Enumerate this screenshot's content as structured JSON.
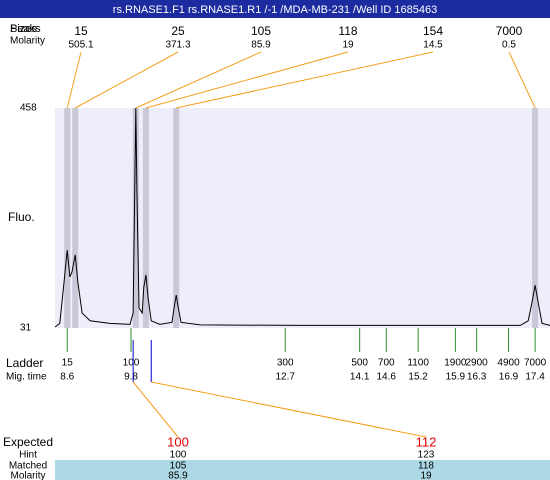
{
  "chart_data": {
    "type": "electropherogram",
    "title": "rs.RNASE1.F1  rs.RNASE1.R1 /-1 /MDA-MB-231 /Well ID 1685463",
    "y_label": "Fluo.",
    "ylim": [
      31,
      458
    ],
    "yticks": [
      31,
      458
    ],
    "xlim": [
      8.37,
      17.68
    ],
    "trace": {
      "color": "#000000",
      "x": [
        8.37,
        8.46,
        8.54,
        8.6,
        8.65,
        8.69,
        8.75,
        8.8,
        8.88,
        9.03,
        9.4,
        9.78,
        9.84,
        9.87,
        9.89,
        9.91,
        9.95,
        10.01,
        10.04,
        10.08,
        10.12,
        10.18,
        10.34,
        10.57,
        10.61,
        10.65,
        10.68,
        10.74,
        11.1,
        12.98,
        14.86,
        17.12,
        17.27,
        17.34,
        17.4,
        17.45,
        17.53,
        17.68
      ],
      "values": [
        33,
        40,
        120,
        182,
        130,
        140,
        173,
        120,
        60,
        45,
        40,
        38,
        60,
        300,
        458,
        300,
        70,
        60,
        110,
        134,
        90,
        45,
        38,
        42,
        70,
        95,
        75,
        42,
        37,
        36,
        36,
        36,
        45,
        80,
        114,
        85,
        40,
        36
      ]
    },
    "peaks": {
      "labels": [
        "Peaks",
        "Sizes",
        "Molarity"
      ],
      "sizes": [
        15,
        25,
        105,
        118,
        154,
        7000
      ],
      "molarity": [
        505.1,
        371.3,
        85.9,
        19,
        14.5,
        0.5
      ],
      "times": [
        8.6,
        8.75,
        9.89,
        10.08,
        10.65,
        17.4
      ],
      "line_color": "#f5a020",
      "band_color": "#c8c8d8"
    },
    "ladder": {
      "labels": [
        "Ladder",
        "Mig. time"
      ],
      "sizes": [
        15,
        100,
        300,
        500,
        700,
        1100,
        1900,
        2900,
        4900,
        7000
      ],
      "times": [
        8.6,
        9.8,
        12.7,
        14.1,
        14.6,
        15.2,
        15.9,
        16.3,
        16.9,
        17.4
      ],
      "color": "#2e8b2e"
    },
    "expected": {
      "labels": [
        "Expected",
        "Hint",
        "Matched",
        "Molarity"
      ],
      "times": [
        9.84,
        10.18
      ],
      "color": "#0000cc",
      "expected": [
        100,
        112
      ],
      "hint": [
        100,
        123
      ],
      "matched": [
        105,
        118
      ],
      "molarity": [
        85.9,
        19
      ]
    }
  }
}
